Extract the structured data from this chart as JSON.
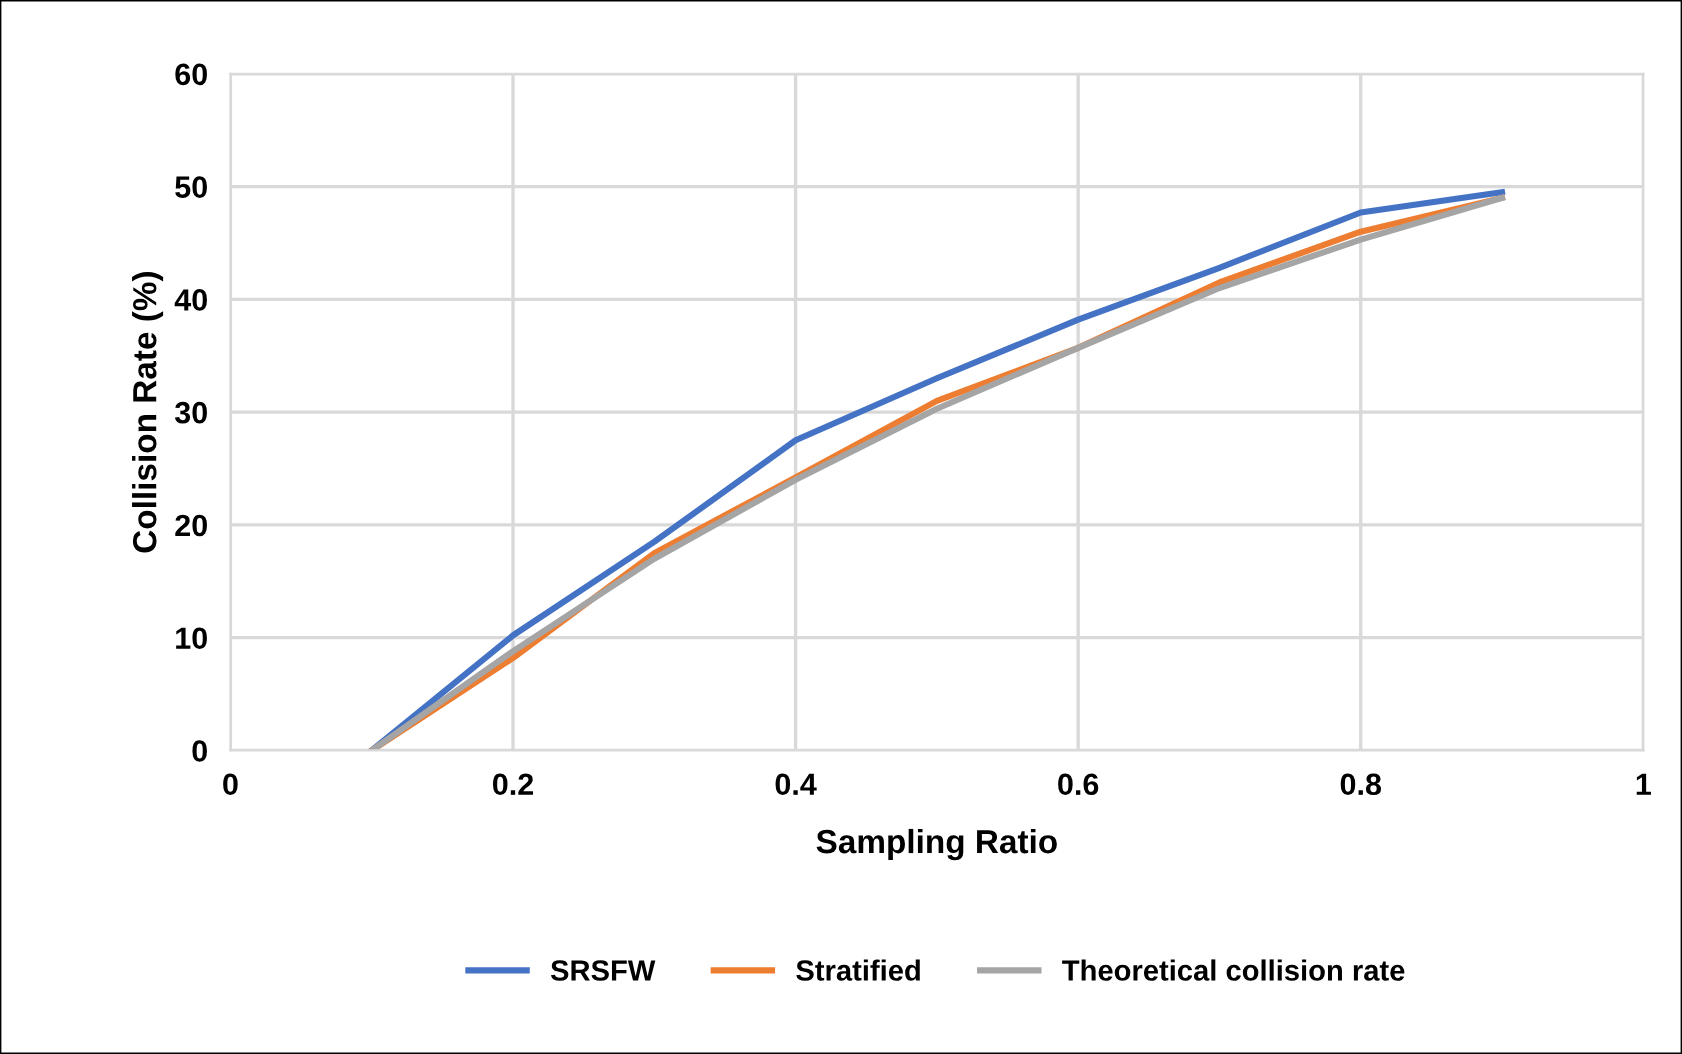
{
  "chart_data": {
    "type": "line",
    "xlabel": "Sampling Ratio",
    "ylabel": "Collision Rate (%)",
    "x": [
      0.1,
      0.2,
      0.3,
      0.4,
      0.5,
      0.6,
      0.7,
      0.8,
      0.9
    ],
    "series": [
      {
        "name": "SRSFW",
        "color": "#4472c4",
        "values": [
          0,
          10.2,
          18.5,
          27.5,
          33,
          38.2,
          42.8,
          47.7,
          49.5
        ]
      },
      {
        "name": "Stratified",
        "color": "#ed7d31",
        "values": [
          0,
          8.2,
          17.5,
          24.2,
          31,
          35.7,
          41.5,
          46,
          49
        ]
      },
      {
        "name": "Theoretical collision rate",
        "color": "#a5a5a5",
        "values": [
          0,
          8.8,
          17,
          24,
          30.3,
          35.7,
          41,
          45.3,
          49
        ]
      }
    ],
    "xlim": [
      0,
      1
    ],
    "xticks": [
      0,
      0.2,
      0.4,
      0.6,
      0.8,
      1
    ],
    "ylim": [
      0,
      60
    ],
    "yticks": [
      0,
      10,
      20,
      30,
      40,
      50,
      60
    ],
    "grid": true,
    "legend": "bottom",
    "marker": "none",
    "line_style": "solid"
  }
}
